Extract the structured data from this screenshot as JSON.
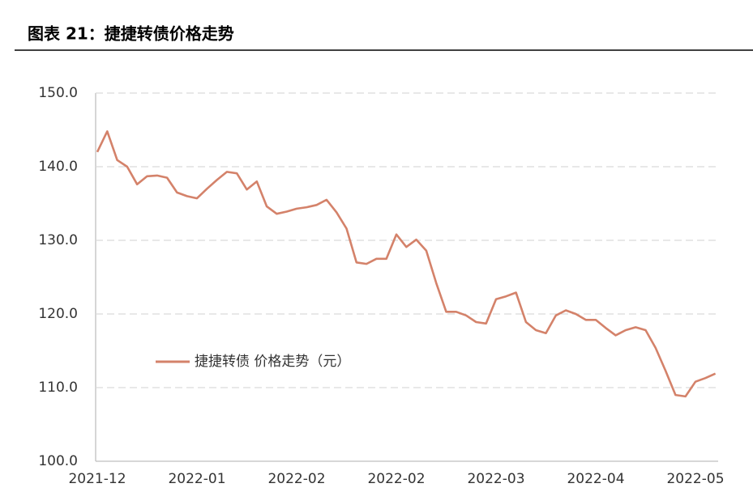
{
  "chart_data": {
    "type": "line",
    "title": "图表 21：捷捷转债价格走势",
    "categories": [
      "2021-12",
      null,
      null,
      null,
      null,
      null,
      null,
      null,
      null,
      null,
      "2022-01",
      null,
      null,
      null,
      null,
      null,
      null,
      null,
      null,
      null,
      "2022-02",
      null,
      null,
      null,
      null,
      null,
      null,
      null,
      null,
      null,
      "2022-02",
      null,
      null,
      null,
      null,
      null,
      null,
      null,
      null,
      null,
      "2022-03",
      null,
      null,
      null,
      null,
      null,
      null,
      null,
      null,
      null,
      "2022-04",
      null,
      null,
      null,
      null,
      null,
      null,
      null,
      null,
      null,
      "2022-05",
      null,
      null
    ],
    "series": [
      {
        "name": "捷捷转债 价格走势（元）",
        "color": "#d4826a",
        "values": [
          142.0,
          144.8,
          140.9,
          140.0,
          137.6,
          138.7,
          138.8,
          138.5,
          136.5,
          136.0,
          135.7,
          137.0,
          138.2,
          139.3,
          139.1,
          136.9,
          138.0,
          134.6,
          133.6,
          133.9,
          134.3,
          134.5,
          134.8,
          135.5,
          133.8,
          131.6,
          127.0,
          126.8,
          127.5,
          127.5,
          130.8,
          129.1,
          130.1,
          128.6,
          124.2,
          120.3,
          120.3,
          119.8,
          118.9,
          118.7,
          122.0,
          122.4,
          122.9,
          118.9,
          117.8,
          117.4,
          119.8,
          120.5,
          120.0,
          119.2,
          119.2,
          118.1,
          117.1,
          117.8,
          118.2,
          117.8,
          115.4,
          112.3,
          109.0,
          108.8,
          110.8,
          111.3,
          111.9
        ]
      }
    ],
    "ylim": [
      100,
      150
    ],
    "yticks": [
      {
        "value": 100,
        "label": "100.0"
      },
      {
        "value": 110,
        "label": "110.0"
      },
      {
        "value": 120,
        "label": "120.0"
      },
      {
        "value": 130,
        "label": "130.0"
      },
      {
        "value": 140,
        "label": "140.0"
      },
      {
        "value": 150,
        "label": "150.0"
      }
    ],
    "grid": true
  }
}
